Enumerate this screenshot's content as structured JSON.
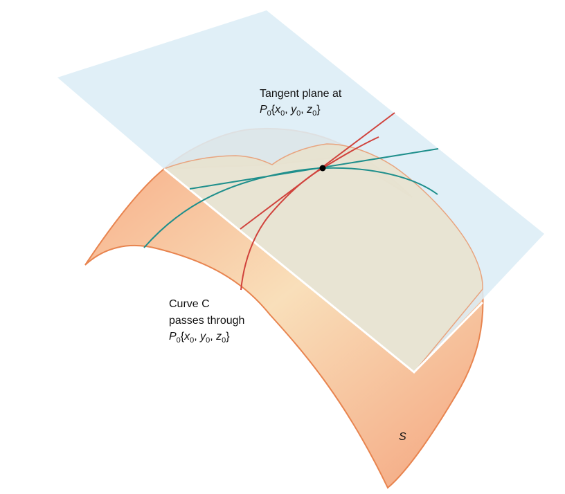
{
  "labels": {
    "tangent_plane_line1": "Tangent plane at",
    "curve_line1": "Curve C",
    "curve_line2": "passes through",
    "surface": "S"
  },
  "point": {
    "name": "P",
    "sub": "0",
    "coords": [
      {
        "base": "x",
        "sub": "0"
      },
      {
        "base": "y",
        "sub": "0"
      },
      {
        "base": "z",
        "sub": "0"
      }
    ]
  },
  "colors": {
    "surface_light": "#f8ddb8",
    "surface_dark": "#f3a682",
    "surface_edge": "#e8844f",
    "plane": "#dff0f8",
    "plane_edge": "#ffffff",
    "curve_red": "#d0423c",
    "curve_teal": "#1f8f8c",
    "point": "#000000"
  }
}
